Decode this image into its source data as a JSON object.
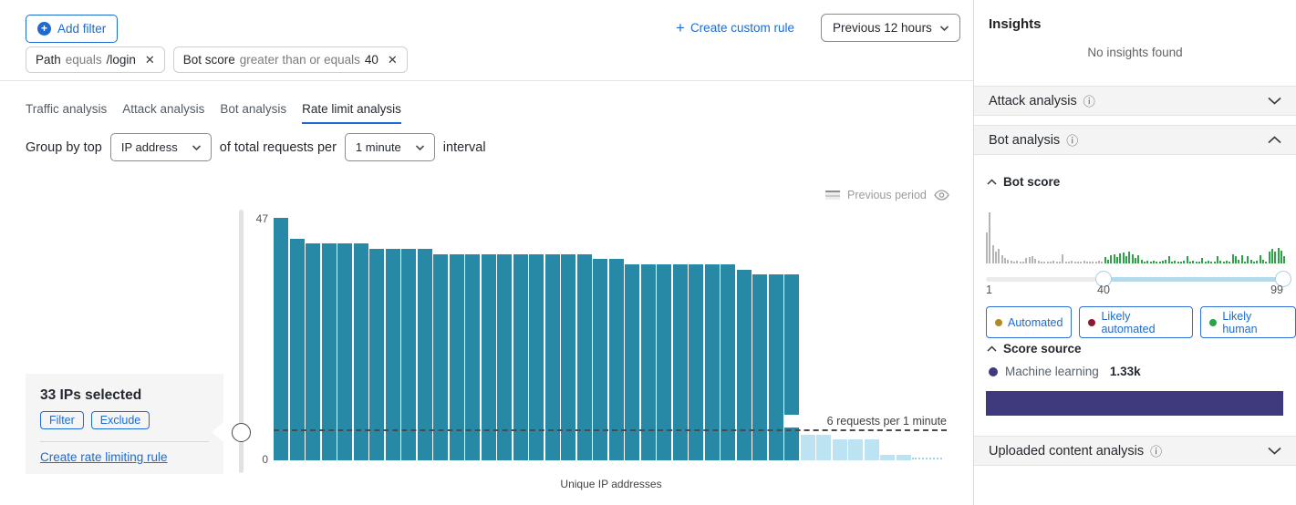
{
  "colors": {
    "accent_blue": "#1b6bd3",
    "bar_selected": "#2889a6",
    "bar_unselected": "#bce3f1",
    "histogram_below": "#b5b5b5",
    "histogram_above": "#2aa445",
    "score_source_purple": "#3e3a7d",
    "badge_automated_dot": "#b08b24",
    "badge_likely_automated_dot": "#8f1737",
    "badge_likely_human_dot": "#27a447"
  },
  "filters": {
    "add_label": "Add filter",
    "chips": [
      {
        "field": "Path",
        "operator": "equals",
        "value": "/login"
      },
      {
        "field": "Bot score",
        "operator": "greater than or equals",
        "value": "40"
      }
    ]
  },
  "header": {
    "create_rule_label": "Create custom rule",
    "time_range_label": "Previous 12 hours"
  },
  "tabs": [
    {
      "label": "Traffic analysis",
      "active": false
    },
    {
      "label": "Attack analysis",
      "active": false
    },
    {
      "label": "Bot analysis",
      "active": false
    },
    {
      "label": "Rate limit analysis",
      "active": true
    }
  ],
  "groupby": {
    "prefix": "Group by top",
    "field_value": "IP address",
    "middle": "of total requests per",
    "interval_value": "1 minute",
    "suffix": "interval"
  },
  "chart": {
    "legend_label": "Previous period",
    "y_top_label": "47",
    "y_bottom_label": "0",
    "threshold_label": "6 requests per 1 minute",
    "x_axis_label": "Unique IP addresses",
    "selection": {
      "title": "33 IPs selected",
      "filter_label": "Filter",
      "exclude_label": "Exclude",
      "link_label": "Create rate limiting rule"
    }
  },
  "chart_data": [
    {
      "id": "requests-per-unique-ip",
      "type": "bar",
      "xlabel": "Unique IP addresses",
      "ylabel": "requests per 1 minute",
      "ylim": [
        0,
        47
      ],
      "threshold": {
        "value": 6,
        "label": "6 requests per 1 minute"
      },
      "selected_count": 33,
      "selected_values": [
        47,
        43,
        42,
        42,
        42,
        42,
        41,
        41,
        41,
        41,
        40,
        40,
        40,
        40,
        40,
        40,
        40,
        40,
        40,
        40,
        39,
        39,
        38,
        38,
        38,
        38,
        38,
        38,
        38,
        37,
        36,
        36,
        36
      ],
      "unselected_values": [
        5,
        5,
        4,
        4,
        4,
        1,
        1
      ],
      "legend": "Previous period"
    },
    {
      "id": "bot-score-distribution",
      "type": "histogram",
      "x_range": [
        1,
        99
      ],
      "slider_threshold": 40,
      "slider_labels": [
        "1",
        "40",
        "99"
      ],
      "values": [
        34,
        56,
        20,
        13,
        16,
        9,
        6,
        4,
        3,
        2,
        3,
        2,
        2,
        6,
        7,
        8,
        5,
        3,
        2,
        2,
        2,
        2,
        3,
        2,
        2,
        10,
        2,
        2,
        3,
        2,
        2,
        2,
        3,
        2,
        2,
        2,
        2,
        3,
        2,
        7,
        4,
        9,
        10,
        7,
        11,
        12,
        8,
        13,
        10,
        6,
        9,
        4,
        2,
        3,
        2,
        3,
        2,
        2,
        3,
        4,
        8,
        2,
        3,
        2,
        2,
        3,
        8,
        2,
        3,
        2,
        2,
        6,
        2,
        3,
        2,
        2,
        8,
        3,
        2,
        3,
        2,
        10,
        8,
        4,
        9,
        2,
        8,
        4,
        2,
        3,
        9,
        4,
        2,
        13,
        16,
        13,
        17,
        14,
        8
      ]
    }
  ],
  "insights": {
    "title": "Insights",
    "empty_message": "No insights found",
    "attack_section_label": "Attack analysis",
    "bot_section_label": "Bot analysis",
    "uploaded_section_label": "Uploaded content analysis",
    "info_icon": "ⓘ",
    "bot": {
      "score_label": "Bot score",
      "slider_min": "1",
      "slider_low": "40",
      "slider_high": "99",
      "badges": [
        {
          "label": "Automated"
        },
        {
          "label": "Likely automated"
        },
        {
          "label": "Likely human"
        }
      ],
      "score_source_label": "Score source",
      "source_name": "Machine learning",
      "source_value": "1.33k"
    }
  }
}
